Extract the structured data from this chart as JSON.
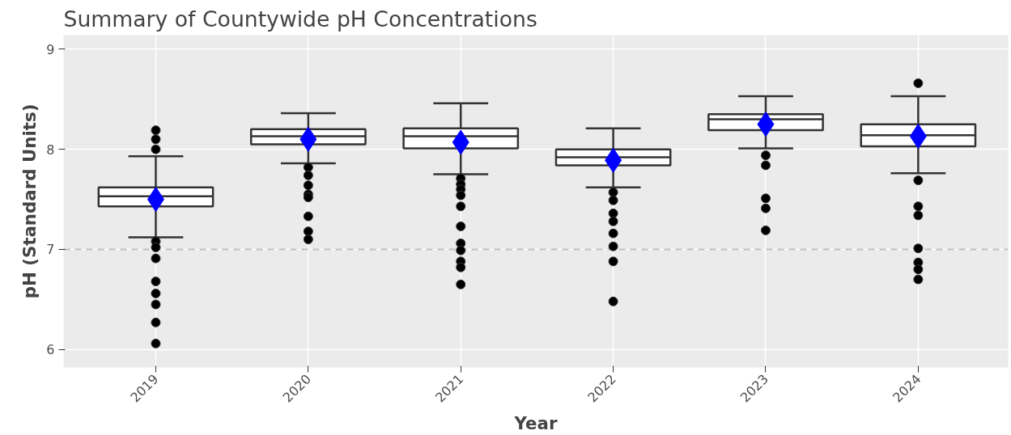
{
  "chart_data": {
    "type": "box",
    "title": "Summary of Countywide pH Concentrations",
    "xlabel": "Year",
    "ylabel": "pH (Standard Units)",
    "categories": [
      "2019",
      "2020",
      "2021",
      "2022",
      "2023",
      "2024"
    ],
    "boxes": [
      {
        "low": 7.12,
        "q1": 7.43,
        "median": 7.53,
        "q3": 7.62,
        "high": 7.93,
        "mean": 7.5,
        "outliers": [
          8.19,
          8.1,
          8.0,
          7.08,
          7.02,
          6.91,
          6.68,
          6.56,
          6.45,
          6.27,
          6.06
        ]
      },
      {
        "low": 7.86,
        "q1": 8.05,
        "median": 8.13,
        "q3": 8.2,
        "high": 8.36,
        "mean": 8.1,
        "outliers": [
          7.82,
          7.74,
          7.64,
          7.55,
          7.52,
          7.33,
          7.18,
          7.1
        ]
      },
      {
        "low": 7.75,
        "q1": 8.01,
        "median": 8.13,
        "q3": 8.21,
        "high": 8.46,
        "mean": 8.07,
        "outliers": [
          7.71,
          7.65,
          7.6,
          7.54,
          7.43,
          7.23,
          7.06,
          6.99,
          6.88,
          6.82,
          6.65
        ]
      },
      {
        "low": 7.62,
        "q1": 7.84,
        "median": 7.92,
        "q3": 8.0,
        "high": 8.21,
        "mean": 7.89,
        "outliers": [
          7.57,
          7.49,
          7.36,
          7.28,
          7.16,
          7.03,
          6.88,
          6.48
        ]
      },
      {
        "low": 8.01,
        "q1": 8.19,
        "median": 8.3,
        "q3": 8.35,
        "high": 8.53,
        "mean": 8.25,
        "outliers": [
          7.94,
          7.84,
          7.51,
          7.41,
          7.19
        ]
      },
      {
        "low": 7.76,
        "q1": 8.03,
        "median": 8.14,
        "q3": 8.25,
        "high": 8.53,
        "mean": 8.13,
        "outliers": [
          8.66,
          7.69,
          7.43,
          7.34,
          7.01,
          6.87,
          6.8,
          6.7
        ]
      }
    ],
    "ylim": [
      5.82,
      9.14
    ],
    "yticks": [
      6,
      7,
      8,
      9
    ],
    "grid": true,
    "ref_lines": [
      {
        "axis": "y",
        "value": 7,
        "color": "#bebebe",
        "line_style": "dashed"
      }
    ]
  }
}
